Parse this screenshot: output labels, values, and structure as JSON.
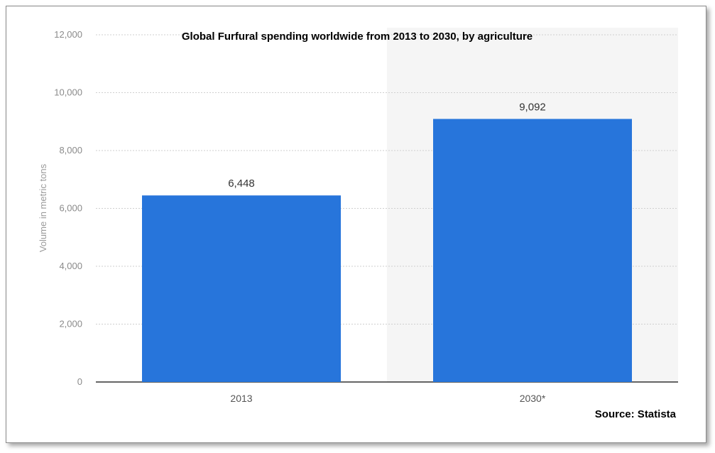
{
  "chart_data": {
    "type": "bar",
    "title": "Global Furfural spending worldwide from 2013 to 2030, by agriculture",
    "source": "Source: Statista",
    "ylabel": "Volume in metric tons",
    "xlabel": "",
    "categories": [
      "2013",
      "2030*"
    ],
    "values": [
      6448,
      9092
    ],
    "value_labels": [
      "6,448",
      "9,092"
    ],
    "y_ticks": [
      0,
      2000,
      4000,
      6000,
      8000,
      10000,
      12000
    ],
    "y_tick_labels": [
      "0",
      "2,000",
      "4,000",
      "6,000",
      "8,000",
      "10,000",
      "12,000"
    ],
    "ylim": [
      0,
      12000
    ],
    "grid": true,
    "legend": "none",
    "bar_color": "#2775db",
    "projection_shading_color": "#f5f5f5"
  }
}
